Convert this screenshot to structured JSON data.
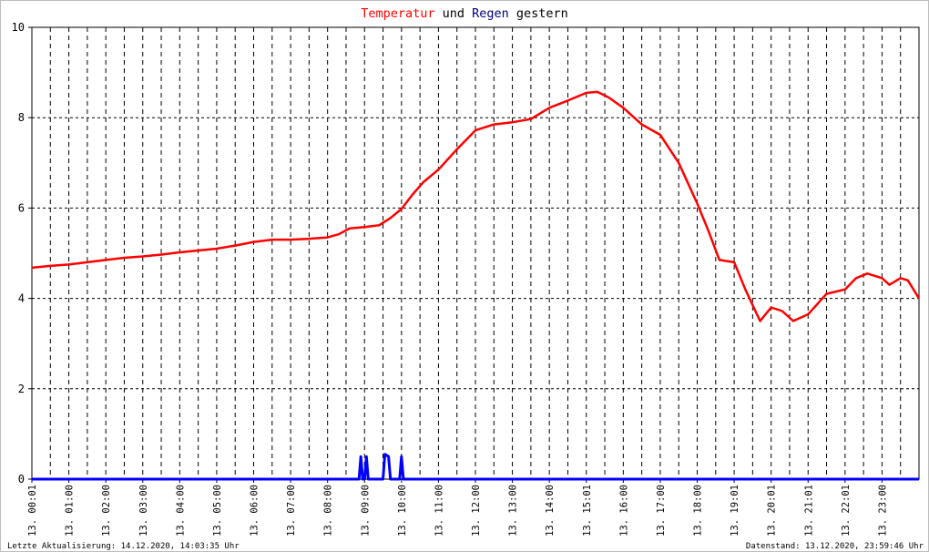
{
  "chart_data": {
    "type": "line",
    "title_parts": [
      {
        "text": "Temperatur",
        "color": "#ff0000"
      },
      {
        "text": " und ",
        "color": "#000000"
      },
      {
        "text": "Regen",
        "color": "#000080"
      },
      {
        "text": " gestern",
        "color": "#000000"
      }
    ],
    "x_unit": "hours",
    "xlim": [
      0,
      24
    ],
    "ylim": [
      0,
      10
    ],
    "yticks": [
      0,
      2,
      4,
      6,
      8,
      10
    ],
    "grid": true,
    "x_tick_labels": [
      "13. 00:01",
      "13. 01:00",
      "13. 02:00",
      "13. 03:00",
      "13. 04:00",
      "13. 05:00",
      "13. 06:00",
      "13. 07:00",
      "13. 08:00",
      "13. 09:00",
      "13. 10:00",
      "13. 11:00",
      "13. 12:00",
      "13. 13:00",
      "13. 14:00",
      "13. 15:01",
      "13. 16:00",
      "13. 17:00",
      "13. 18:00",
      "13. 19:01",
      "13. 20:01",
      "13. 21:01",
      "13. 22:01",
      "13. 23:00"
    ],
    "series": [
      {
        "name": "Temperatur",
        "color": "#ff0000",
        "points": [
          [
            0.0,
            4.68
          ],
          [
            0.5,
            4.72
          ],
          [
            1.0,
            4.75
          ],
          [
            1.5,
            4.8
          ],
          [
            2.0,
            4.85
          ],
          [
            2.5,
            4.9
          ],
          [
            3.0,
            4.93
          ],
          [
            3.5,
            4.97
          ],
          [
            4.0,
            5.02
          ],
          [
            4.5,
            5.06
          ],
          [
            5.0,
            5.1
          ],
          [
            5.5,
            5.17
          ],
          [
            6.0,
            5.25
          ],
          [
            6.5,
            5.3
          ],
          [
            7.0,
            5.3
          ],
          [
            7.5,
            5.32
          ],
          [
            8.0,
            5.35
          ],
          [
            8.3,
            5.42
          ],
          [
            8.6,
            5.55
          ],
          [
            9.0,
            5.58
          ],
          [
            9.4,
            5.62
          ],
          [
            9.7,
            5.78
          ],
          [
            10.0,
            5.98
          ],
          [
            10.3,
            6.3
          ],
          [
            10.6,
            6.58
          ],
          [
            11.0,
            6.85
          ],
          [
            11.5,
            7.3
          ],
          [
            12.0,
            7.72
          ],
          [
            12.5,
            7.85
          ],
          [
            13.0,
            7.9
          ],
          [
            13.5,
            7.97
          ],
          [
            14.0,
            8.22
          ],
          [
            14.5,
            8.38
          ],
          [
            15.0,
            8.55
          ],
          [
            15.3,
            8.57
          ],
          [
            15.6,
            8.45
          ],
          [
            16.0,
            8.22
          ],
          [
            16.5,
            7.85
          ],
          [
            17.0,
            7.62
          ],
          [
            17.5,
            7.0
          ],
          [
            18.0,
            6.1
          ],
          [
            18.3,
            5.5
          ],
          [
            18.6,
            4.85
          ],
          [
            19.0,
            4.8
          ],
          [
            19.3,
            4.2
          ],
          [
            19.7,
            3.5
          ],
          [
            20.0,
            3.8
          ],
          [
            20.3,
            3.72
          ],
          [
            20.6,
            3.5
          ],
          [
            21.0,
            3.65
          ],
          [
            21.5,
            4.1
          ],
          [
            22.0,
            4.2
          ],
          [
            22.3,
            4.45
          ],
          [
            22.6,
            4.55
          ],
          [
            23.0,
            4.45
          ],
          [
            23.2,
            4.3
          ],
          [
            23.5,
            4.45
          ],
          [
            23.7,
            4.4
          ],
          [
            24.0,
            4.0
          ]
        ]
      },
      {
        "name": "Regen",
        "color": "#0000ff",
        "points": [
          [
            0.0,
            0.0
          ],
          [
            8.85,
            0.0
          ],
          [
            8.9,
            0.5
          ],
          [
            8.95,
            0.0
          ],
          [
            9.0,
            0.0
          ],
          [
            9.05,
            0.5
          ],
          [
            9.1,
            0.0
          ],
          [
            9.5,
            0.0
          ],
          [
            9.55,
            0.55
          ],
          [
            9.65,
            0.5
          ],
          [
            9.7,
            0.0
          ],
          [
            9.95,
            0.0
          ],
          [
            10.0,
            0.5
          ],
          [
            10.05,
            0.0
          ],
          [
            24.0,
            0.0
          ]
        ]
      }
    ]
  },
  "footer": {
    "left": "Letzte Aktualisierung: 14.12.2020, 14:03:35 Uhr",
    "right": "Datenstand: 13.12.2020, 23:59:46 Uhr"
  }
}
